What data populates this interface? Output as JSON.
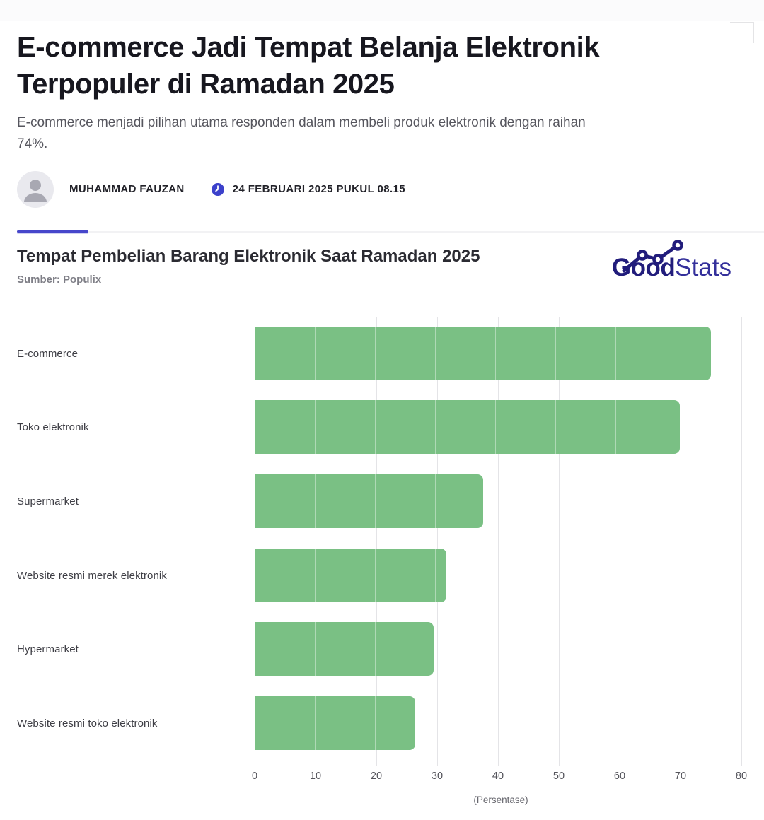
{
  "article": {
    "title": "E-commerce Jadi Tempat Belanja Elektronik Terpopuler di Ramadan 2025",
    "subtitle": "E-commerce menjadi pilihan utama responden dalam membeli produk elektronik dengan raihan 74%.",
    "author": "MUHAMMAD FAUZAN",
    "published": "24 FEBRUARI 2025 PUKUL 08.15"
  },
  "infographic": {
    "title": "Tempat Pembelian Barang Elektronik Saat Ramadan 2025",
    "source": "Sumber: Populix",
    "brand": {
      "bold": "Good",
      "light": "Stats"
    }
  },
  "chart_data": {
    "type": "bar",
    "orientation": "horizontal",
    "categories": [
      "E-commerce",
      "Toko elektronik",
      "Supermarket",
      "Website resmi merek elektronik",
      "Hypermarket",
      "Website resmi toko elektronik"
    ],
    "values": [
      74,
      69,
      37,
      31,
      29,
      26
    ],
    "xlim": [
      0,
      80
    ],
    "xticks": [
      "0",
      "10",
      "20",
      "30",
      "40",
      "50",
      "60",
      "70",
      "80"
    ],
    "xlabel": "(Persentase)",
    "grid": true,
    "legend": "none",
    "bar_color": "#7ac084"
  },
  "colors": {
    "accent_divider": "#4747cb",
    "clock_icon": "#3c41cb",
    "brand_navy": "#211c7b",
    "bar_green": "#7ac084",
    "gridline": "#e4e4e7"
  }
}
